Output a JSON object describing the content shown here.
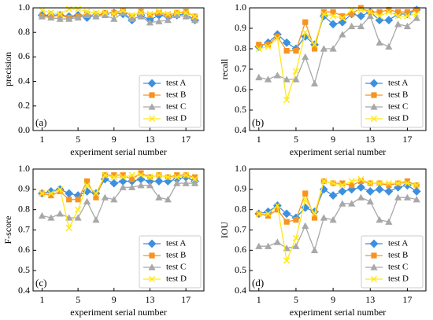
{
  "legend_labels": [
    "test A",
    "test B",
    "test C",
    "test D"
  ],
  "colors": {
    "test A": "#3d8fe0",
    "test B": "#f7931e",
    "test C": "#a8a8a8",
    "test D": "#ffe81a"
  },
  "markers": {
    "test A": "diamond",
    "test B": "square",
    "test C": "triangle",
    "test D": "x"
  },
  "chart_data": [
    {
      "type": "line",
      "panel_label": "(a)",
      "xlabel": "experiment serial number",
      "ylabel": "precision",
      "xlim": [
        0,
        19
      ],
      "ylim": [
        0.0,
        1.0
      ],
      "x_ticks": [
        1,
        5,
        9,
        13,
        17
      ],
      "y_ticks": [
        "0.0",
        "0.2",
        "0.4",
        "0.6",
        "0.8",
        "1.0"
      ],
      "y_tick_values": [
        0.0,
        0.2,
        0.4,
        0.6,
        0.8,
        1.0
      ],
      "legend_position": "bottom-right",
      "x": [
        1,
        2,
        3,
        4,
        5,
        6,
        7,
        8,
        9,
        10,
        11,
        12,
        13,
        14,
        15,
        16,
        17,
        18
      ],
      "series": [
        {
          "name": "test A",
          "values": [
            0.94,
            0.94,
            0.94,
            0.93,
            0.94,
            0.92,
            0.94,
            0.95,
            0.96,
            0.95,
            0.9,
            0.94,
            0.9,
            0.94,
            0.93,
            0.94,
            0.95,
            0.9
          ]
        },
        {
          "name": "test B",
          "values": [
            0.93,
            0.93,
            0.94,
            0.92,
            0.93,
            0.95,
            0.93,
            0.96,
            0.96,
            0.98,
            0.93,
            0.97,
            0.94,
            0.96,
            0.94,
            0.96,
            0.97,
            0.93
          ]
        },
        {
          "name": "test C",
          "values": [
            0.93,
            0.92,
            0.91,
            0.91,
            0.92,
            0.94,
            0.93,
            0.94,
            0.91,
            0.96,
            0.91,
            0.93,
            0.88,
            0.89,
            0.9,
            0.94,
            0.93,
            0.9
          ]
        },
        {
          "name": "test D",
          "values": [
            0.98,
            0.96,
            0.95,
            0.99,
            0.99,
            0.97,
            0.96,
            0.96,
            0.95,
            0.98,
            0.94,
            0.96,
            0.95,
            0.97,
            0.95,
            0.96,
            0.96,
            0.93
          ]
        }
      ]
    },
    {
      "type": "line",
      "panel_label": "(b)",
      "xlabel": "experiment serial number",
      "ylabel": "recall",
      "xlim": [
        0,
        19
      ],
      "ylim": [
        0.4,
        1.0
      ],
      "x_ticks": [
        1,
        5,
        9,
        13,
        17
      ],
      "y_ticks": [
        "0.4",
        "0.5",
        "0.6",
        "0.7",
        "0.8",
        "0.9",
        "1.0"
      ],
      "y_tick_values": [
        0.4,
        0.5,
        0.6,
        0.7,
        0.8,
        0.9,
        1.0
      ],
      "legend_position": "bottom-right",
      "x": [
        1,
        2,
        3,
        4,
        5,
        6,
        7,
        8,
        9,
        10,
        11,
        12,
        13,
        14,
        15,
        16,
        17,
        18
      ],
      "series": [
        {
          "name": "test A",
          "values": [
            0.81,
            0.83,
            0.87,
            0.83,
            0.8,
            0.86,
            0.82,
            0.96,
            0.92,
            0.93,
            0.97,
            0.96,
            0.98,
            0.94,
            0.94,
            0.97,
            0.97,
            0.99
          ]
        },
        {
          "name": "test B",
          "values": [
            0.82,
            0.82,
            0.86,
            0.79,
            0.79,
            0.93,
            0.8,
            0.98,
            0.98,
            0.96,
            0.97,
            1.0,
            0.98,
            0.98,
            0.99,
            0.98,
            0.98,
            0.99
          ]
        },
        {
          "name": "test C",
          "values": [
            0.66,
            0.65,
            0.67,
            0.65,
            0.65,
            0.76,
            0.63,
            0.8,
            0.8,
            0.87,
            0.91,
            0.91,
            0.96,
            0.83,
            0.81,
            0.92,
            0.91,
            0.95
          ]
        },
        {
          "name": "test D",
          "values": [
            0.8,
            0.81,
            0.85,
            0.55,
            0.69,
            0.88,
            0.82,
            0.97,
            0.96,
            0.95,
            0.99,
            0.99,
            0.98,
            0.96,
            0.98,
            0.96,
            0.96,
            0.97
          ]
        }
      ]
    },
    {
      "type": "line",
      "panel_label": "(c)",
      "xlabel": "experiment serial number",
      "ylabel": "F-score",
      "xlim": [
        0,
        19
      ],
      "ylim": [
        0.4,
        1.0
      ],
      "x_ticks": [
        1,
        5,
        9,
        13,
        17
      ],
      "y_ticks": [
        "0.4",
        "0.5",
        "0.6",
        "0.7",
        "0.8",
        "0.9",
        "1.0"
      ],
      "y_tick_values": [
        0.4,
        0.5,
        0.6,
        0.7,
        0.8,
        0.9,
        1.0
      ],
      "legend_position": "bottom-right",
      "x": [
        1,
        2,
        3,
        4,
        5,
        6,
        7,
        8,
        9,
        10,
        11,
        12,
        13,
        14,
        15,
        16,
        17,
        18
      ],
      "series": [
        {
          "name": "test A",
          "values": [
            0.88,
            0.89,
            0.9,
            0.88,
            0.87,
            0.89,
            0.88,
            0.95,
            0.93,
            0.94,
            0.94,
            0.95,
            0.94,
            0.94,
            0.94,
            0.95,
            0.96,
            0.94
          ]
        },
        {
          "name": "test B",
          "values": [
            0.88,
            0.87,
            0.89,
            0.85,
            0.85,
            0.94,
            0.86,
            0.97,
            0.97,
            0.97,
            0.95,
            0.98,
            0.96,
            0.97,
            0.96,
            0.97,
            0.97,
            0.96
          ]
        },
        {
          "name": "test C",
          "values": [
            0.77,
            0.76,
            0.78,
            0.76,
            0.76,
            0.84,
            0.75,
            0.86,
            0.85,
            0.91,
            0.91,
            0.92,
            0.92,
            0.86,
            0.85,
            0.93,
            0.93,
            0.93
          ]
        },
        {
          "name": "test D",
          "values": [
            0.88,
            0.88,
            0.9,
            0.71,
            0.8,
            0.92,
            0.88,
            0.97,
            0.96,
            0.96,
            0.97,
            0.97,
            0.96,
            0.97,
            0.96,
            0.96,
            0.97,
            0.95
          ]
        }
      ]
    },
    {
      "type": "line",
      "panel_label": "(d)",
      "xlabel": "experiment serial number",
      "ylabel": "IOU",
      "xlim": [
        0,
        19
      ],
      "ylim": [
        0.4,
        1.0
      ],
      "x_ticks": [
        1,
        5,
        9,
        13,
        17
      ],
      "y_ticks": [
        "0.4",
        "0.5",
        "0.6",
        "0.7",
        "0.8",
        "0.9",
        "1.0"
      ],
      "y_tick_values": [
        0.4,
        0.5,
        0.6,
        0.7,
        0.8,
        0.9,
        1.0
      ],
      "legend_position": "bottom-right",
      "x": [
        1,
        2,
        3,
        4,
        5,
        6,
        7,
        8,
        9,
        10,
        11,
        12,
        13,
        14,
        15,
        16,
        17,
        18
      ],
      "series": [
        {
          "name": "test A",
          "values": [
            0.78,
            0.79,
            0.82,
            0.78,
            0.76,
            0.81,
            0.79,
            0.9,
            0.87,
            0.89,
            0.9,
            0.91,
            0.89,
            0.9,
            0.89,
            0.91,
            0.92,
            0.89
          ]
        },
        {
          "name": "test B",
          "values": [
            0.78,
            0.77,
            0.8,
            0.74,
            0.75,
            0.88,
            0.76,
            0.94,
            0.93,
            0.93,
            0.92,
            0.94,
            0.93,
            0.93,
            0.92,
            0.93,
            0.94,
            0.92
          ]
        },
        {
          "name": "test C",
          "values": [
            0.62,
            0.62,
            0.64,
            0.61,
            0.62,
            0.72,
            0.6,
            0.76,
            0.75,
            0.83,
            0.83,
            0.86,
            0.84,
            0.75,
            0.74,
            0.86,
            0.86,
            0.85
          ]
        },
        {
          "name": "test D",
          "values": [
            0.78,
            0.78,
            0.82,
            0.55,
            0.66,
            0.85,
            0.78,
            0.94,
            0.93,
            0.92,
            0.94,
            0.95,
            0.93,
            0.93,
            0.93,
            0.93,
            0.93,
            0.92
          ]
        }
      ]
    }
  ]
}
